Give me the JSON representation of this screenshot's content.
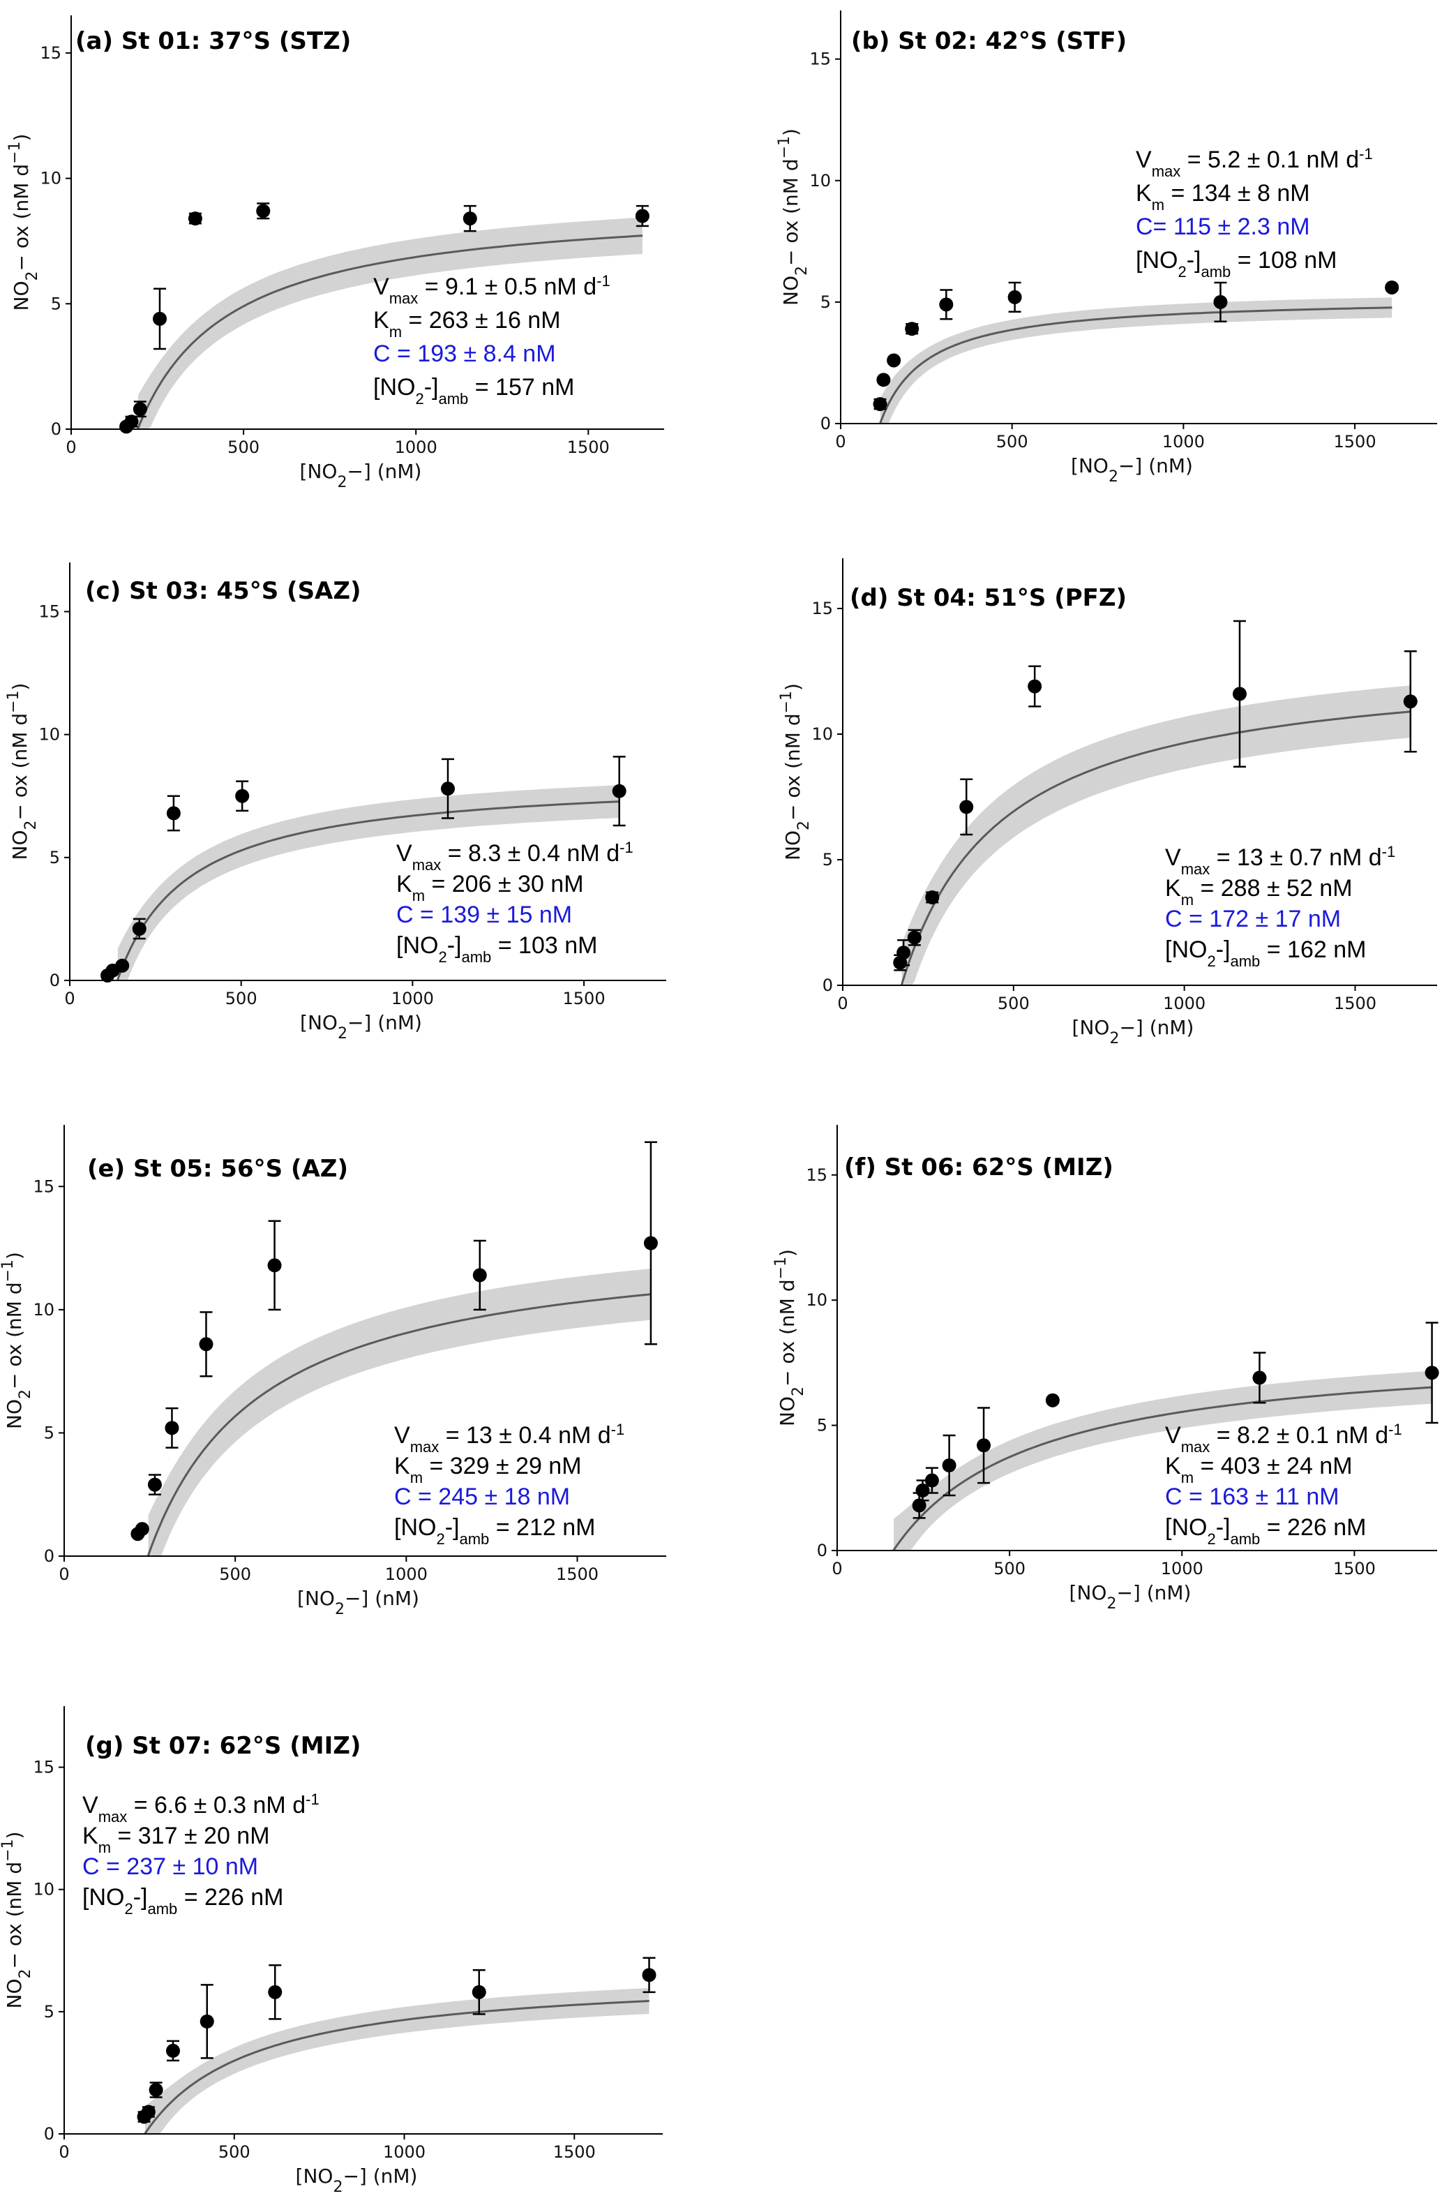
{
  "colors": {
    "text": "#000000",
    "blue": "#1a1adb",
    "band": "#d3d3d3",
    "fit": "#5a5a5a",
    "point": "#000000"
  },
  "chart_data": [
    {
      "type": "scatter",
      "title": "(a) St 01: 37°S (STZ)",
      "xlabel": "[NO2−] (nM)",
      "ylabel": "NO2− ox (nM d−1)",
      "xlim": [
        0,
        1720
      ],
      "ylim": [
        0,
        16.5
      ],
      "xticks": [
        0,
        500,
        1000,
        1500
      ],
      "yticks": [
        0,
        5,
        10,
        15
      ],
      "points": [
        {
          "x": 160,
          "y": 0.1,
          "err": 0.1
        },
        {
          "x": 175,
          "y": 0.3,
          "err": 0.2
        },
        {
          "x": 200,
          "y": 0.8,
          "err": 0.3
        },
        {
          "x": 257,
          "y": 4.4,
          "err": 1.2
        },
        {
          "x": 360,
          "y": 8.4,
          "err": 0.2
        },
        {
          "x": 557,
          "y": 8.7,
          "err": 0.3
        },
        {
          "x": 1157,
          "y": 8.4,
          "err": 0.5
        },
        {
          "x": 1657,
          "y": 8.5,
          "err": 0.4
        }
      ],
      "fit": {
        "vmax": 9.1,
        "km": 263,
        "c": 193
      },
      "stats": {
        "vmax": "9.1 ± 0.5 nM d",
        "km": "263 ± 16 nM",
        "c": "C = 193 ± 8.4 nM",
        "amb": "157 nM"
      }
    },
    {
      "type": "scatter",
      "title": "(b) St 02: 42°S (STF)",
      "xlabel": "[NO2−] (nM)",
      "ylabel": "NO2− ox (nM d−1)",
      "xlim": [
        0,
        1740
      ],
      "ylim": [
        0,
        17
      ],
      "xticks": [
        0,
        500,
        1000,
        1500
      ],
      "yticks": [
        0,
        5,
        10,
        15
      ],
      "points": [
        {
          "x": 115,
          "y": 0.8,
          "err": 0.2
        },
        {
          "x": 125,
          "y": 1.8,
          "err": 0.1
        },
        {
          "x": 155,
          "y": 2.6,
          "err": 0.1
        },
        {
          "x": 208,
          "y": 3.9,
          "err": 0.2
        },
        {
          "x": 308,
          "y": 4.9,
          "err": 0.6
        },
        {
          "x": 508,
          "y": 5.2,
          "err": 0.6
        },
        {
          "x": 1108,
          "y": 5.0,
          "err": 0.8
        },
        {
          "x": 1608,
          "y": 5.6,
          "err": 0.1
        }
      ],
      "fit": {
        "vmax": 5.2,
        "km": 134,
        "c": 115
      },
      "stats": {
        "vmax": "5.2 ± 0.1 nM d",
        "km": "134 ± 8 nM",
        "c": "C= 115 ± 2.3 nM",
        "amb": "108 nM"
      }
    },
    {
      "type": "scatter",
      "title": "(c) St 03: 45°S (SAZ)",
      "xlabel": "[NO2−] (nM)",
      "ylabel": "NO2− ox (nM d−1)",
      "xlim": [
        0,
        1740
      ],
      "ylim": [
        0,
        17
      ],
      "xticks": [
        0,
        500,
        1000,
        1500
      ],
      "yticks": [
        0,
        5,
        10,
        15
      ],
      "points": [
        {
          "x": 110,
          "y": 0.2,
          "err": 0.1
        },
        {
          "x": 125,
          "y": 0.4,
          "err": 0.1
        },
        {
          "x": 153,
          "y": 0.6,
          "err": 0.1
        },
        {
          "x": 203,
          "y": 2.1,
          "err": 0.4
        },
        {
          "x": 303,
          "y": 6.8,
          "err": 0.7
        },
        {
          "x": 503,
          "y": 7.5,
          "err": 0.6
        },
        {
          "x": 1103,
          "y": 7.8,
          "err": 1.2
        },
        {
          "x": 1603,
          "y": 7.7,
          "err": 1.4
        }
      ],
      "fit": {
        "vmax": 8.3,
        "km": 206,
        "c": 139
      },
      "stats": {
        "vmax": "8.3 ± 0.4 nM d",
        "km": "206 ± 30 nM",
        "c": "C = 139 ± 15 nM",
        "amb": "103 nM"
      }
    },
    {
      "type": "scatter",
      "title": "(d) St 04: 51°S (PFZ)",
      "xlabel": "[NO2−] (nM)",
      "ylabel": "NO2− ox (nM d−1)",
      "xlim": [
        0,
        1740
      ],
      "ylim": [
        0,
        17
      ],
      "xticks": [
        0,
        500,
        1000,
        1500
      ],
      "yticks": [
        0,
        5,
        10,
        15
      ],
      "points": [
        {
          "x": 168,
          "y": 0.9,
          "err": 0.3
        },
        {
          "x": 178,
          "y": 1.3,
          "err": 0.5
        },
        {
          "x": 210,
          "y": 1.9,
          "err": 0.3
        },
        {
          "x": 262,
          "y": 3.5,
          "err": 0.2
        },
        {
          "x": 362,
          "y": 7.1,
          "err": 1.1
        },
        {
          "x": 562,
          "y": 11.9,
          "err": 0.8
        },
        {
          "x": 1162,
          "y": 11.6,
          "err": 2.9
        },
        {
          "x": 1662,
          "y": 11.3,
          "err": 2.0
        }
      ],
      "fit": {
        "vmax": 13,
        "km": 288,
        "c": 172
      },
      "stats": {
        "vmax": "13 ± 0.7 nM d",
        "km": "288 ± 52 nM",
        "c": "C = 172 ± 17 nM",
        "amb": "162 nM"
      }
    },
    {
      "type": "scatter",
      "title": "(e) St 05: 56°S (AZ)",
      "xlabel": "[NO2−] (nM)",
      "ylabel": "NO2− ox (nM d−1)",
      "xlim": [
        0,
        1760
      ],
      "ylim": [
        0,
        17.5
      ],
      "xticks": [
        0,
        500,
        1000,
        1500
      ],
      "yticks": [
        0,
        5,
        10,
        15
      ],
      "points": [
        {
          "x": 215,
          "y": 0.9,
          "err": 0.1
        },
        {
          "x": 228,
          "y": 1.1,
          "err": 0.1
        },
        {
          "x": 265,
          "y": 2.9,
          "err": 0.4
        },
        {
          "x": 315,
          "y": 5.2,
          "err": 0.8
        },
        {
          "x": 415,
          "y": 8.6,
          "err": 1.3
        },
        {
          "x": 615,
          "y": 11.8,
          "err": 1.8
        },
        {
          "x": 1215,
          "y": 11.4,
          "err": 1.4
        },
        {
          "x": 1715,
          "y": 12.7,
          "err": 4.1
        }
      ],
      "fit": {
        "vmax": 13,
        "km": 329,
        "c": 245
      },
      "stats": {
        "vmax": "13 ± 0.4 nM d",
        "km": "329 ± 29 nM",
        "c": "C = 245 ± 18 nM",
        "amb": "212 nM"
      }
    },
    {
      "type": "scatter",
      "title": "(f) St 06: 62°S (MIZ)",
      "xlabel": "[NO2−] (nM)",
      "ylabel": "NO2− ox (nM d−1)",
      "xlim": [
        0,
        1740
      ],
      "ylim": [
        0,
        17
      ],
      "xticks": [
        0,
        500,
        1000,
        1500
      ],
      "yticks": [
        0,
        5,
        10,
        15
      ],
      "points": [
        {
          "x": 238,
          "y": 1.8,
          "err": 0.5
        },
        {
          "x": 248,
          "y": 2.4,
          "err": 0.4
        },
        {
          "x": 275,
          "y": 2.8,
          "err": 0.5
        },
        {
          "x": 325,
          "y": 3.4,
          "err": 1.2
        },
        {
          "x": 425,
          "y": 4.2,
          "err": 1.5
        },
        {
          "x": 625,
          "y": 6.0,
          "err": 0.1
        },
        {
          "x": 1225,
          "y": 6.9,
          "err": 1.0
        },
        {
          "x": 1725,
          "y": 7.1,
          "err": 2.0
        }
      ],
      "fit": {
        "vmax": 8.2,
        "km": 403,
        "c": 163
      },
      "stats": {
        "vmax": "8.2 ± 0.1 nM d",
        "km": "403 ± 24 nM",
        "c": "C = 163 ± 11 nM",
        "amb": "226 nM"
      }
    },
    {
      "type": "scatter",
      "title": "(g) St 07: 62°S (MIZ)",
      "xlabel": "[NO2−] (nM)",
      "ylabel": "NO2− ox (nM d−1)",
      "xlim": [
        0,
        1760
      ],
      "ylim": [
        0,
        17.5
      ],
      "xticks": [
        0,
        500,
        1000,
        1500
      ],
      "yticks": [
        0,
        5,
        10,
        15
      ],
      "points": [
        {
          "x": 235,
          "y": 0.7,
          "err": 0.2
        },
        {
          "x": 248,
          "y": 0.9,
          "err": 0.2
        },
        {
          "x": 270,
          "y": 1.8,
          "err": 0.3
        },
        {
          "x": 320,
          "y": 3.4,
          "err": 0.4
        },
        {
          "x": 420,
          "y": 4.6,
          "err": 1.5
        },
        {
          "x": 620,
          "y": 5.8,
          "err": 1.1
        },
        {
          "x": 1220,
          "y": 5.8,
          "err": 0.9
        },
        {
          "x": 1720,
          "y": 6.5,
          "err": 0.7
        }
      ],
      "fit": {
        "vmax": 6.6,
        "km": 317,
        "c": 237
      },
      "stats": {
        "vmax": "6.6 ± 0.3 nM d",
        "km": "317 ± 20 nM",
        "c": "C = 237 ± 10 nM",
        "amb": "226 nM"
      }
    }
  ]
}
